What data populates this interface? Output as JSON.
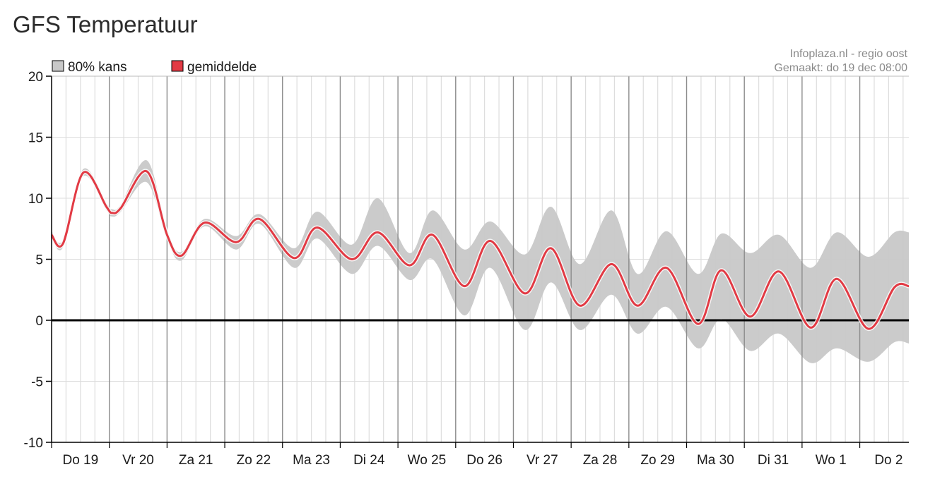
{
  "page": {
    "title": "GFS Temperatuur"
  },
  "source": {
    "line1": "Infoplaza.nl - regio oost",
    "line2": "Gemaakt: do 19 dec 08:00"
  },
  "legend": [
    {
      "label": "80% kans",
      "color": "#c8c8c8"
    },
    {
      "label": "gemiddelde",
      "color": "#e23a44"
    }
  ],
  "colors": {
    "band": "#c8c8c8",
    "mean": "#e23a44",
    "zero_line": "#000000",
    "day_line": "#8c8c8c",
    "grid": "#dddddd"
  },
  "chart_data": {
    "type": "area",
    "title": "GFS Temperatuur",
    "xlabel": "",
    "ylabel": "",
    "x_categories": [
      "Do 19",
      "Vr 20",
      "Za 21",
      "Zo 22",
      "Ma 23",
      "Di 24",
      "Wo 25",
      "Do 26",
      "Vr 27",
      "Za 28",
      "Zo 29",
      "Ma 30",
      "Di 31",
      "Wo 1",
      "Do 2"
    ],
    "x_unit": "days since Do 19 00:00",
    "xlim": [
      0,
      14.85
    ],
    "ylim": [
      -10,
      20
    ],
    "yticks": [
      20,
      15,
      10,
      5,
      0,
      -5,
      -10
    ],
    "grid": true,
    "legend_position": "top-left",
    "series": [
      {
        "name": "gemiddelde",
        "kind": "line",
        "points": [
          [
            0,
            7.0
          ],
          [
            0.2,
            6.3
          ],
          [
            0.55,
            12.1
          ],
          [
            0.95,
            9.3
          ],
          [
            1.05,
            8.8
          ],
          [
            1.2,
            9.2
          ],
          [
            1.65,
            12.2
          ],
          [
            2.0,
            7.0
          ],
          [
            2.25,
            5.3
          ],
          [
            2.65,
            8.0
          ],
          [
            3.2,
            6.4
          ],
          [
            3.6,
            8.3
          ],
          [
            4.2,
            5.1
          ],
          [
            4.6,
            7.6
          ],
          [
            5.2,
            5.0
          ],
          [
            5.65,
            7.2
          ],
          [
            6.2,
            4.5
          ],
          [
            6.6,
            7.0
          ],
          [
            7.15,
            2.8
          ],
          [
            7.6,
            6.5
          ],
          [
            8.2,
            2.2
          ],
          [
            8.65,
            5.9
          ],
          [
            9.15,
            1.2
          ],
          [
            9.7,
            4.6
          ],
          [
            10.15,
            1.2
          ],
          [
            10.65,
            4.3
          ],
          [
            11.2,
            -0.3
          ],
          [
            11.6,
            4.1
          ],
          [
            12.1,
            0.3
          ],
          [
            12.6,
            4.0
          ],
          [
            13.15,
            -0.6
          ],
          [
            13.6,
            3.4
          ],
          [
            14.15,
            -0.7
          ],
          [
            14.6,
            2.7
          ],
          [
            14.85,
            2.8
          ]
        ]
      },
      {
        "name": "80% kans",
        "kind": "band",
        "upper": [
          [
            0,
            7.3
          ],
          [
            0.2,
            6.6
          ],
          [
            0.55,
            12.4
          ],
          [
            0.95,
            9.6
          ],
          [
            1.05,
            9.1
          ],
          [
            1.2,
            9.5
          ],
          [
            1.65,
            13.1
          ],
          [
            2.0,
            7.4
          ],
          [
            2.25,
            5.6
          ],
          [
            2.65,
            8.3
          ],
          [
            3.2,
            6.9
          ],
          [
            3.6,
            8.7
          ],
          [
            4.2,
            5.9
          ],
          [
            4.6,
            8.9
          ],
          [
            5.2,
            6.2
          ],
          [
            5.65,
            10.0
          ],
          [
            6.2,
            5.5
          ],
          [
            6.6,
            9.0
          ],
          [
            7.15,
            5.8
          ],
          [
            7.6,
            8.1
          ],
          [
            8.2,
            5.4
          ],
          [
            8.65,
            9.3
          ],
          [
            9.15,
            4.6
          ],
          [
            9.7,
            9.0
          ],
          [
            10.15,
            3.8
          ],
          [
            10.65,
            7.3
          ],
          [
            11.2,
            3.8
          ],
          [
            11.6,
            7.1
          ],
          [
            12.1,
            5.5
          ],
          [
            12.6,
            7.0
          ],
          [
            13.15,
            4.3
          ],
          [
            13.6,
            7.2
          ],
          [
            14.15,
            5.2
          ],
          [
            14.6,
            7.2
          ],
          [
            14.85,
            7.2
          ]
        ],
        "lower": [
          [
            0,
            6.7
          ],
          [
            0.2,
            6.0
          ],
          [
            0.55,
            11.8
          ],
          [
            0.95,
            9.0
          ],
          [
            1.05,
            8.5
          ],
          [
            1.2,
            8.9
          ],
          [
            1.65,
            11.3
          ],
          [
            2.0,
            6.6
          ],
          [
            2.25,
            4.9
          ],
          [
            2.65,
            7.7
          ],
          [
            3.2,
            5.8
          ],
          [
            3.6,
            7.9
          ],
          [
            4.2,
            4.3
          ],
          [
            4.6,
            6.7
          ],
          [
            5.2,
            3.8
          ],
          [
            5.65,
            6.1
          ],
          [
            6.2,
            3.3
          ],
          [
            6.6,
            5.0
          ],
          [
            7.15,
            0.4
          ],
          [
            7.6,
            4.3
          ],
          [
            8.2,
            -0.8
          ],
          [
            8.65,
            3.1
          ],
          [
            9.15,
            -0.8
          ],
          [
            9.7,
            2.1
          ],
          [
            10.15,
            -1.1
          ],
          [
            10.65,
            1.1
          ],
          [
            11.2,
            -2.3
          ],
          [
            11.6,
            0.1
          ],
          [
            12.1,
            -2.5
          ],
          [
            12.6,
            -1.1
          ],
          [
            13.15,
            -3.5
          ],
          [
            13.6,
            -2.3
          ],
          [
            14.15,
            -3.4
          ],
          [
            14.6,
            -1.8
          ],
          [
            14.85,
            -1.9
          ]
        ]
      }
    ]
  }
}
